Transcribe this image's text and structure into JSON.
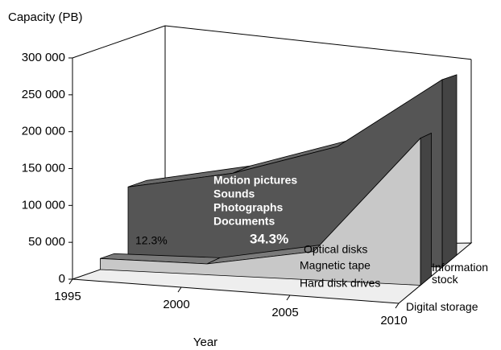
{
  "chart_data": {
    "type": "area3d",
    "y_label": "Capacity (PB)",
    "x_label": "Year",
    "x": [
      1995,
      2000,
      2005,
      2010
    ],
    "xlim": [
      1995,
      2010
    ],
    "xticks": [
      1995,
      2000,
      2005,
      2010
    ],
    "ylim": [
      0,
      300000
    ],
    "yticks": [
      0,
      {
        "value": 50000,
        "label": "50 000"
      },
      {
        "value": 100000,
        "label": "100 000"
      },
      {
        "value": 150000,
        "label": "150 000"
      },
      {
        "value": 200000,
        "label": "200 000"
      },
      {
        "value": 250000,
        "label": "250 000"
      },
      {
        "value": 300000,
        "label": "300 000"
      }
    ],
    "series": [
      {
        "name": "Information stock",
        "color": "#555555",
        "top_color": "#6a6a6a",
        "values": [
          99000,
          125000,
          172000,
          283000
        ]
      },
      {
        "name": "Digital storage",
        "color": "#c8c8c8",
        "top_color": "#7a7a7a",
        "values": [
          15000,
          15000,
          40000,
          210000
        ]
      }
    ],
    "annotations": [
      "Motion pictures",
      "Sounds",
      "Photographs",
      "Documents",
      "34.3%",
      "12.3%",
      "Optical disks",
      "Magnetic tape",
      "Hard disk drives"
    ]
  }
}
